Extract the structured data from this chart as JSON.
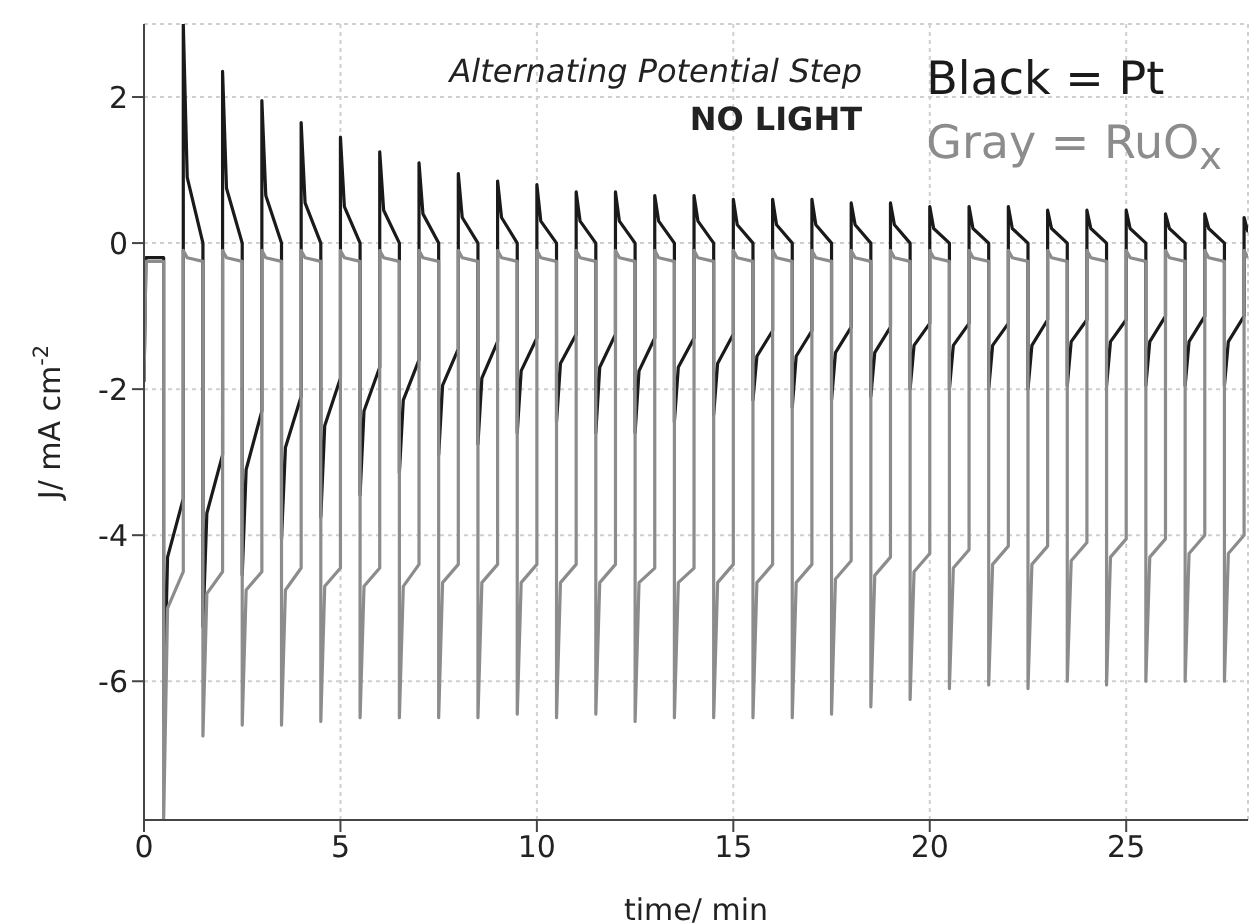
{
  "chart_data": {
    "type": "line",
    "annotations": [
      "Alternating Potential Step",
      "NO LIGHT"
    ],
    "xlabel": "time/ min",
    "ylabel": "J/ mA cm$^{-2}$",
    "xlim": [
      0,
      28.1
    ],
    "ylim": [
      -7.9,
      3
    ],
    "xticks": [
      0,
      5,
      10,
      15,
      20,
      25
    ],
    "yticks": [
      -6,
      -4,
      -2,
      0,
      2
    ],
    "grid": true,
    "legend": "top right",
    "x": [
      0,
      0.05,
      0.5,
      0.5,
      0.6,
      1,
      1,
      1.1,
      1.5,
      1.5,
      1.6,
      2,
      2,
      2.1,
      2.5,
      2.5,
      2.6,
      3,
      3,
      3.1,
      3.5,
      3.5,
      3.6,
      4,
      4,
      4.1,
      4.5,
      4.5,
      4.6,
      5,
      5,
      5.1,
      5.5,
      5.5,
      5.6,
      6,
      6,
      6.1,
      6.5,
      6.5,
      6.6,
      7,
      7,
      7.1,
      7.5,
      7.5,
      7.6,
      8,
      8,
      8.1,
      8.5,
      8.5,
      8.6,
      9,
      9,
      9.1,
      9.5,
      9.5,
      9.6,
      10,
      10,
      10.1,
      10.5,
      10.5,
      10.6,
      11,
      11,
      11.1,
      11.5,
      11.5,
      11.6,
      12,
      12,
      12.1,
      12.5,
      12.5,
      12.6,
      13,
      13,
      13.1,
      13.5,
      13.5,
      13.6,
      14,
      14,
      14.1,
      14.5,
      14.5,
      14.6,
      15,
      15,
      15.1,
      15.5,
      15.5,
      15.6,
      16,
      16,
      16.1,
      16.5,
      16.5,
      16.6,
      17,
      17,
      17.1,
      17.5,
      17.5,
      17.6,
      18,
      18,
      18.1,
      18.5,
      18.5,
      18.6,
      19,
      19,
      19.1,
      19.5,
      19.5,
      19.6,
      20,
      20,
      20.1,
      20.5,
      20.5,
      20.6,
      21,
      21,
      21.1,
      21.5,
      21.5,
      21.6,
      22,
      22,
      22.1,
      22.5,
      22.5,
      22.6,
      23,
      23,
      23.1,
      23.5,
      23.5,
      23.6,
      24,
      24,
      24.1,
      24.5,
      24.5,
      24.6,
      25,
      25,
      25.1,
      25.5,
      25.5,
      25.6,
      26,
      26,
      26.1,
      26.5,
      26.5,
      26.6,
      27,
      27,
      27.1,
      27.5,
      27.5,
      27.6,
      28,
      28,
      28.1
    ],
    "series": [
      {
        "name": "Black = Pt",
        "color": "#1a1a1a",
        "values": [
          -1.9,
          -0.2,
          -0.2,
          -6.55,
          -4.3,
          -3.5,
          3,
          0.9,
          0,
          -5.25,
          -3.7,
          -2.9,
          2.35,
          0.75,
          0,
          -4.55,
          -3.1,
          -2.3,
          1.95,
          0.65,
          0,
          -4.05,
          -2.8,
          -2.1,
          1.65,
          0.55,
          0,
          -3.75,
          -2.5,
          -1.85,
          1.45,
          0.5,
          0,
          -3.45,
          -2.3,
          -1.7,
          1.25,
          0.45,
          0,
          -3.15,
          -2.15,
          -1.6,
          1.1,
          0.4,
          0,
          -2.9,
          -1.95,
          -1.45,
          0.95,
          0.35,
          0,
          -2.75,
          -1.85,
          -1.35,
          0.85,
          0.35,
          0,
          -2.6,
          -1.75,
          -1.3,
          0.8,
          0.3,
          0,
          -2.45,
          -1.65,
          -1.25,
          0.7,
          0.3,
          0,
          -2.6,
          -1.7,
          -1.25,
          0.7,
          0.3,
          0,
          -2.6,
          -1.75,
          -1.3,
          0.65,
          0.3,
          0,
          -2.45,
          -1.7,
          -1.3,
          0.65,
          0.3,
          0,
          -2.35,
          -1.65,
          -1.25,
          0.6,
          0.25,
          0,
          -2.15,
          -1.55,
          -1.2,
          0.6,
          0.25,
          0,
          -2.25,
          -1.55,
          -1.2,
          0.6,
          0.25,
          0,
          -2.15,
          -1.5,
          -1.15,
          0.55,
          0.25,
          0,
          -2.1,
          -1.5,
          -1.15,
          0.55,
          0.25,
          0,
          -2.0,
          -1.4,
          -1.1,
          0.5,
          0.2,
          0,
          -2.0,
          -1.4,
          -1.1,
          0.5,
          0.2,
          0,
          -2.0,
          -1.4,
          -1.1,
          0.5,
          0.2,
          0,
          -2.0,
          -1.4,
          -1.05,
          0.45,
          0.2,
          0,
          -1.95,
          -1.35,
          -1.05,
          0.45,
          0.2,
          0,
          -1.95,
          -1.35,
          -1.05,
          0.45,
          0.2,
          0,
          -1.95,
          -1.35,
          -1.0,
          0.4,
          0.2,
          0,
          -1.95,
          -1.35,
          -1.0,
          0.4,
          0.2,
          0,
          -1.95,
          -1.35,
          -1.0,
          0.35,
          0.15
        ]
      },
      {
        "name": "Gray = RuO$_{x}$",
        "color": "#8c8c8c",
        "values": [
          -1.9,
          -0.25,
          -0.25,
          -7.9,
          -5.0,
          -4.5,
          -0.1,
          -0.2,
          -0.25,
          -6.75,
          -4.8,
          -4.5,
          -0.1,
          -0.2,
          -0.25,
          -6.6,
          -4.75,
          -4.5,
          -0.1,
          -0.2,
          -0.25,
          -6.6,
          -4.75,
          -4.45,
          -0.1,
          -0.2,
          -0.25,
          -6.55,
          -4.7,
          -4.45,
          -0.1,
          -0.2,
          -0.25,
          -6.5,
          -4.7,
          -4.45,
          -0.1,
          -0.2,
          -0.25,
          -6.5,
          -4.7,
          -4.4,
          -0.1,
          -0.2,
          -0.25,
          -6.5,
          -4.65,
          -4.4,
          -0.1,
          -0.2,
          -0.25,
          -6.5,
          -4.65,
          -4.4,
          -0.1,
          -0.2,
          -0.25,
          -6.45,
          -4.65,
          -4.4,
          -0.1,
          -0.2,
          -0.25,
          -6.5,
          -4.65,
          -4.4,
          -0.1,
          -0.2,
          -0.25,
          -6.45,
          -4.65,
          -4.4,
          -0.1,
          -0.2,
          -0.25,
          -6.55,
          -4.65,
          -4.45,
          -0.1,
          -0.2,
          -0.25,
          -6.5,
          -4.65,
          -4.45,
          -0.1,
          -0.2,
          -0.25,
          -6.5,
          -4.65,
          -4.4,
          -0.1,
          -0.2,
          -0.25,
          -6.5,
          -4.65,
          -4.4,
          -0.1,
          -0.2,
          -0.25,
          -6.5,
          -4.65,
          -4.4,
          -0.1,
          -0.2,
          -0.25,
          -6.45,
          -4.6,
          -4.35,
          -0.1,
          -0.2,
          -0.25,
          -6.35,
          -4.55,
          -4.3,
          -0.1,
          -0.2,
          -0.25,
          -6.25,
          -4.5,
          -4.25,
          -0.1,
          -0.2,
          -0.25,
          -6.1,
          -4.45,
          -4.2,
          -0.1,
          -0.2,
          -0.25,
          -6.05,
          -4.4,
          -4.15,
          -0.1,
          -0.2,
          -0.25,
          -6.1,
          -4.4,
          -4.15,
          -0.1,
          -0.2,
          -0.25,
          -6.0,
          -4.35,
          -4.1,
          -0.1,
          -0.2,
          -0.25,
          -6.05,
          -4.3,
          -4.05,
          -0.1,
          -0.2,
          -0.25,
          -6.0,
          -4.3,
          -4.05,
          -0.1,
          -0.2,
          -0.25,
          -6.0,
          -4.25,
          -4.0,
          -0.1,
          -0.2,
          -0.25,
          -6.0,
          -4.25,
          -4.0,
          -0.1,
          -0.2
        ]
      }
    ]
  }
}
